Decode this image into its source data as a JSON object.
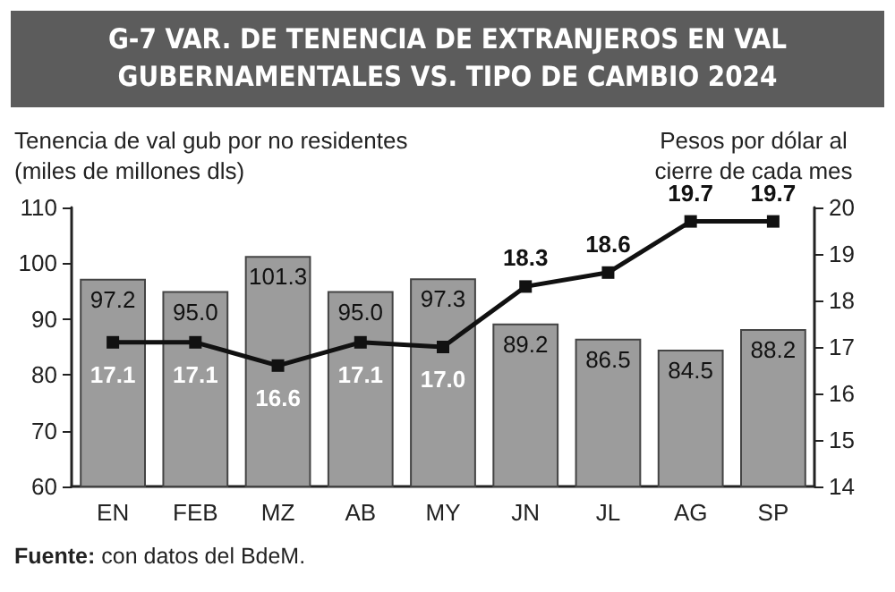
{
  "chart_data": {
    "type": "bar",
    "title": "G-7 VAR. DE TENENCIA DE EXTRANJEROS EN VAL GUBERNAMENTALES VS. TIPO DE CAMBIO 2024",
    "ylabel": "Tenencia de val gub por no residentes (miles de millones dls)",
    "y2label": "Pesos por dólar al cierre de cada mes",
    "categories": [
      "EN",
      "FEB",
      "MZ",
      "AB",
      "MY",
      "JN",
      "JL",
      "AG",
      "SP"
    ],
    "series": [
      {
        "color": "#9c9c9c",
        "values": [
          97.2,
          95.0,
          101.3,
          95.0,
          97.3,
          89.2,
          86.5,
          84.5,
          88.2
        ],
        "value_labels": [
          "97.2",
          "95.0",
          "101.3",
          "95.0",
          "97.3",
          "89.2",
          "86.5",
          "84.5",
          "88.2"
        ]
      },
      {
        "type": "line",
        "axis": "y2",
        "color": "#111111",
        "values": [
          17.1,
          17.1,
          16.6,
          17.1,
          17.0,
          18.3,
          18.6,
          19.7,
          19.7
        ],
        "value_labels": [
          "17.1",
          "17.1",
          "16.6",
          "17.1",
          "17.0",
          "18.3",
          "18.6",
          "19.7",
          "19.7"
        ]
      }
    ],
    "ylim": [
      60,
      110
    ],
    "yticks": [
      60,
      70,
      80,
      90,
      100,
      110
    ],
    "y2lim": [
      14,
      20
    ],
    "y2ticks": [
      14,
      15,
      16,
      17,
      18,
      19,
      20
    ],
    "marker": "square",
    "line_style": "solid",
    "grid": false,
    "annotations": [
      "Fuente: con datos del BdeM."
    ]
  }
}
